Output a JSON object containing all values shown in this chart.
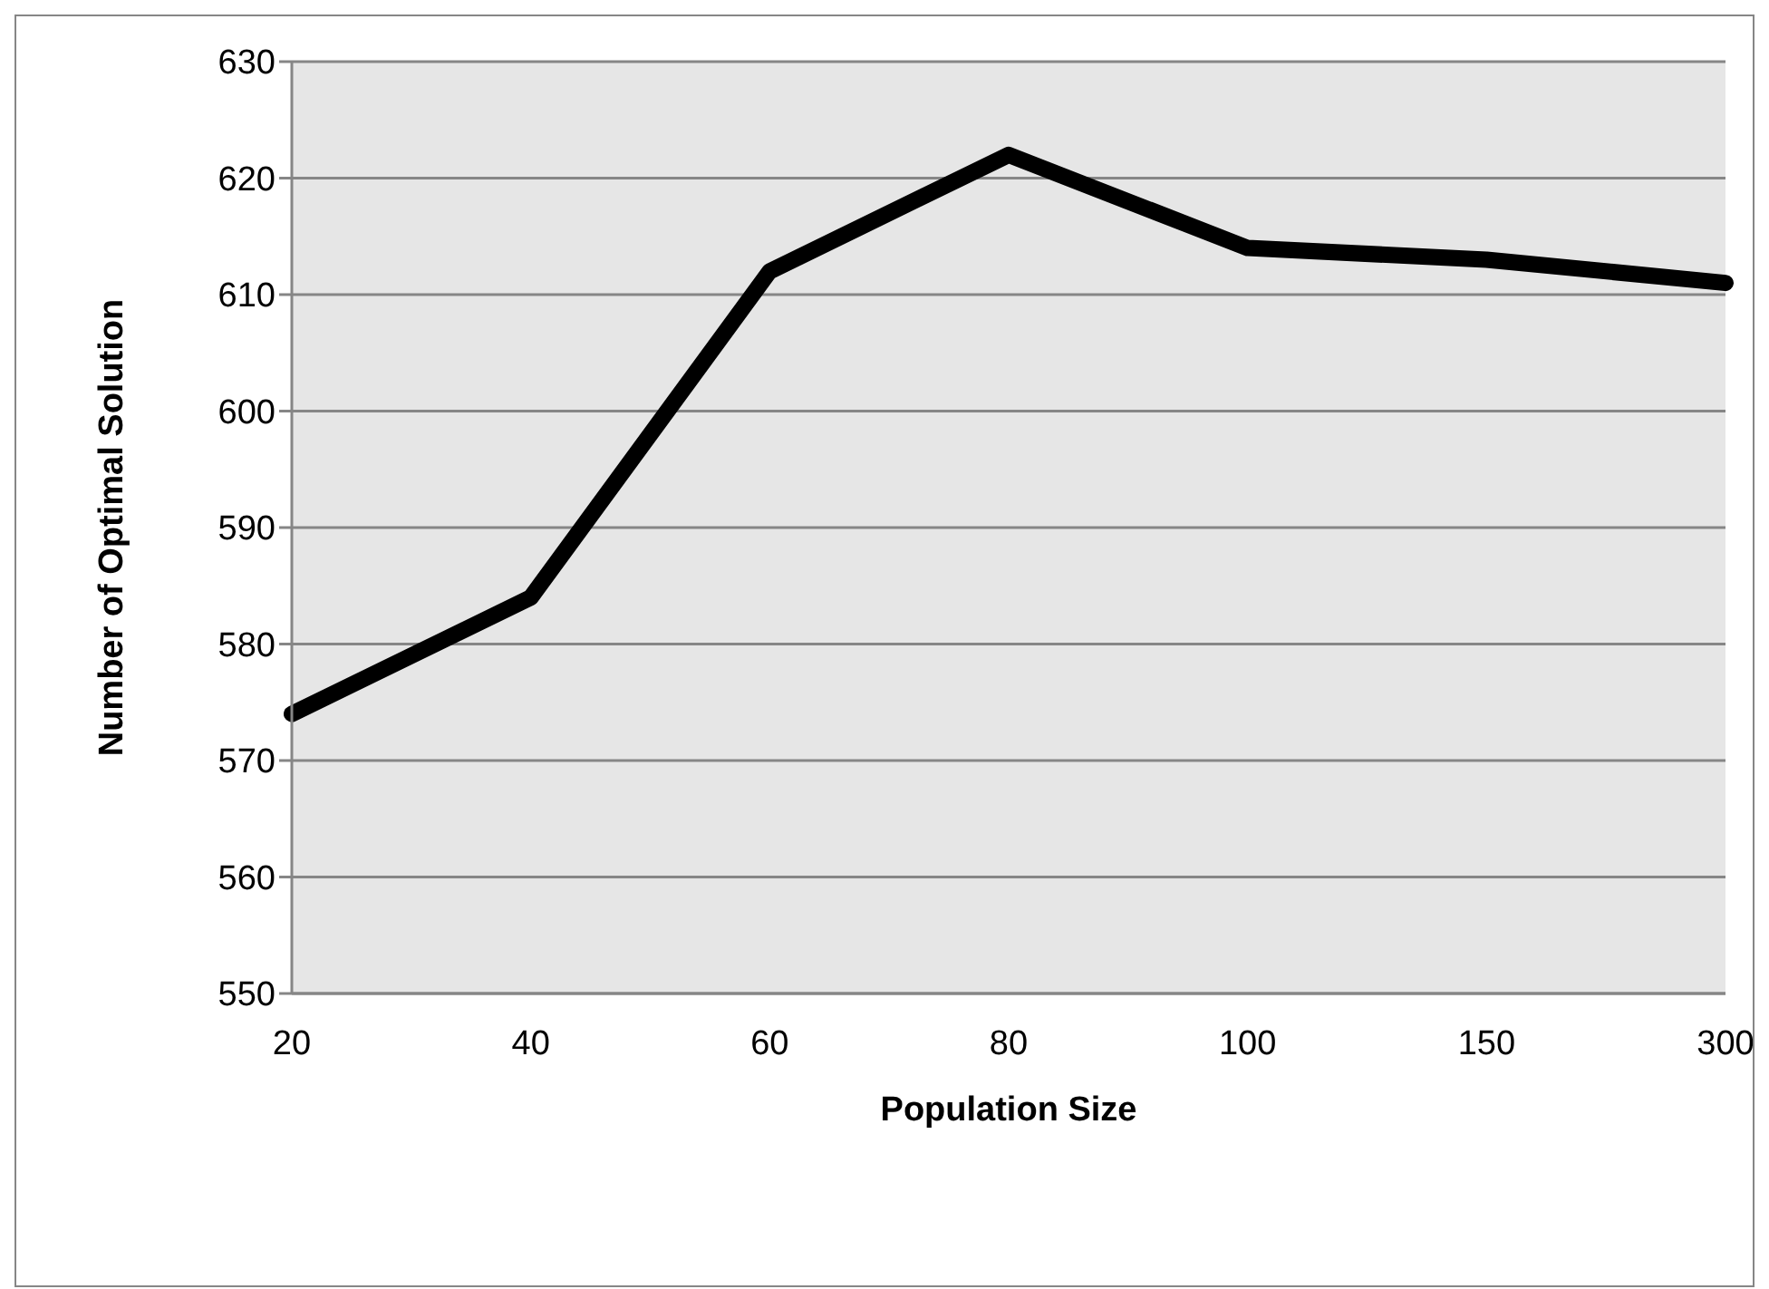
{
  "chart_data": {
    "type": "line",
    "xlabel": "Population Size",
    "ylabel": "Number of Optimal Solution",
    "categories": [
      "20",
      "40",
      "60",
      "80",
      "100",
      "150",
      "300"
    ],
    "values": [
      574,
      584,
      612,
      622,
      614,
      613,
      611
    ],
    "color": "#000000",
    "ylim": [
      550,
      630
    ],
    "yticks": [
      550,
      560,
      570,
      580,
      590,
      600,
      610,
      620,
      630
    ],
    "grid": "y"
  }
}
